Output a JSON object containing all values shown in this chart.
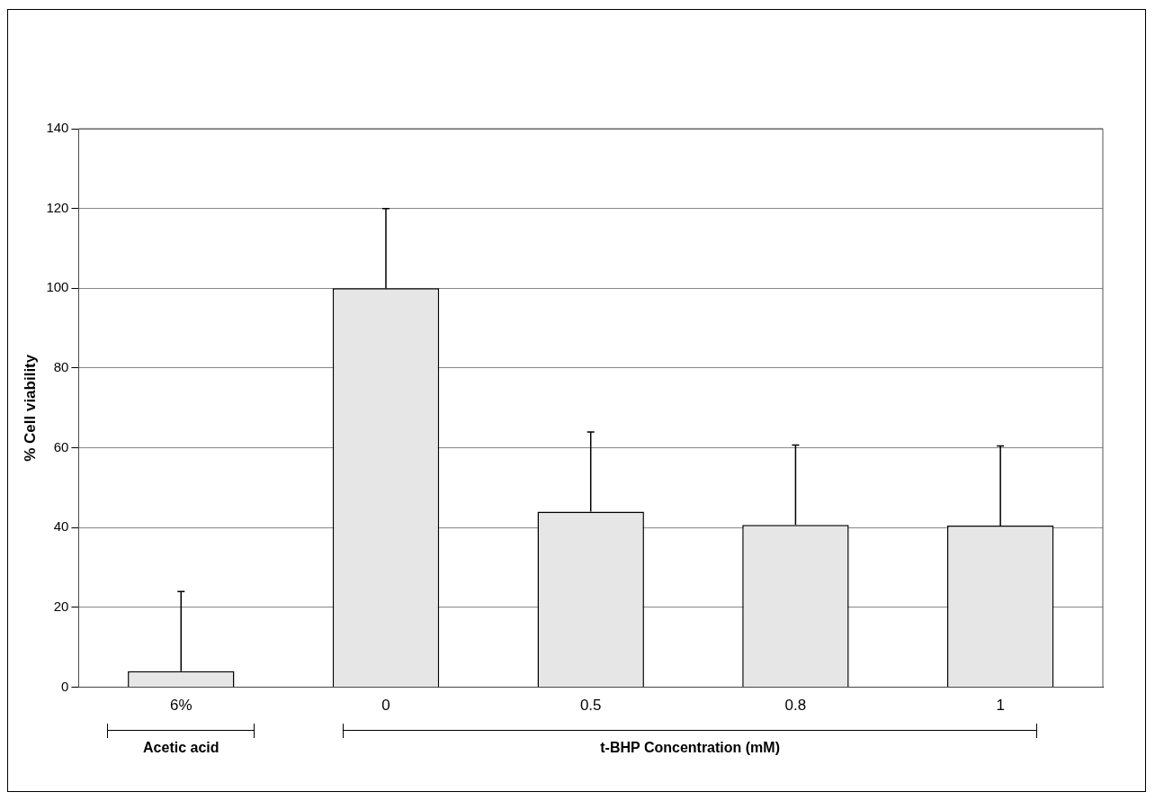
{
  "chart_data": {
    "type": "bar",
    "ylabel": "% Cell viability",
    "categories": [
      "6%",
      "0",
      "0.5",
      "0.8",
      "1"
    ],
    "values": [
      4,
      100,
      44,
      40.7,
      40.5
    ],
    "errors": [
      [
        4,
        24
      ],
      [
        100,
        120
      ],
      [
        44,
        64
      ],
      [
        40.7,
        60.7
      ],
      [
        40.5,
        60.5
      ]
    ],
    "color": "#e6e6e6",
    "ylim": [
      0,
      140
    ],
    "yticks": [
      0,
      20,
      40,
      60,
      80,
      100,
      120,
      140
    ],
    "grid": "y",
    "legend": false,
    "annotations": [
      "Acetic acid",
      "t-BHP Concentration (mM)"
    ]
  }
}
